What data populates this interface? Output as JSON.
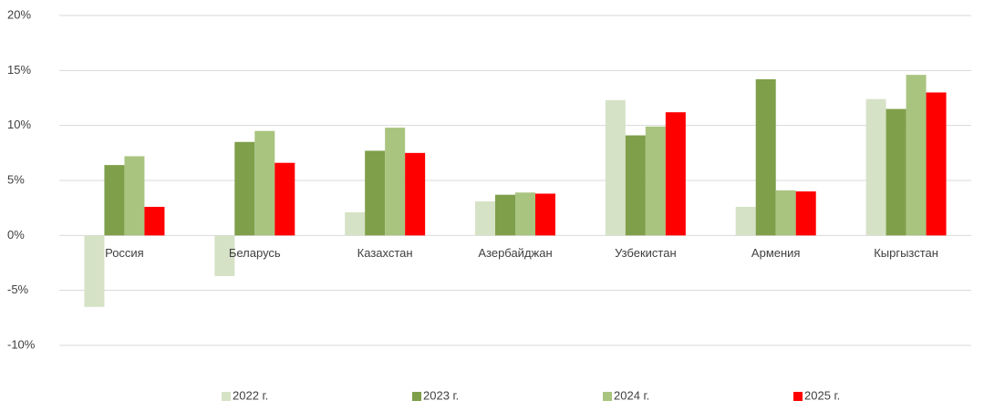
{
  "chart_data": {
    "type": "bar",
    "categories": [
      "Россия",
      "Беларусь",
      "Казахстан",
      "Азербайджан",
      "Узбекистан",
      "Армения",
      "Кыргызстан"
    ],
    "series": [
      {
        "name": "2022 г.",
        "color": "#d6e2c6",
        "values": [
          -6.5,
          -3.7,
          2.1,
          3.1,
          12.3,
          2.6,
          12.4
        ]
      },
      {
        "name": "2023 г.",
        "color": "#7f9f4a",
        "values": [
          6.4,
          8.5,
          7.7,
          3.7,
          9.1,
          14.2,
          11.5
        ]
      },
      {
        "name": "2024 г.",
        "color": "#a9c47f",
        "values": [
          7.2,
          9.5,
          9.8,
          3.9,
          9.9,
          4.1,
          14.6
        ]
      },
      {
        "name": "2025 г.",
        "color": "#ff0000",
        "values": [
          2.6,
          6.6,
          7.5,
          3.8,
          11.2,
          4.0,
          13.0
        ]
      }
    ],
    "ylim": [
      -10,
      20
    ],
    "yticks": [
      {
        "value": -10,
        "label": "-10%"
      },
      {
        "value": -5,
        "label": "-5%"
      },
      {
        "value": 0,
        "label": "0%"
      },
      {
        "value": 5,
        "label": "5%"
      },
      {
        "value": 10,
        "label": "10%"
      },
      {
        "value": 15,
        "label": "15%"
      },
      {
        "value": 20,
        "label": "20%"
      }
    ],
    "grid": true,
    "legend": "bottom"
  }
}
